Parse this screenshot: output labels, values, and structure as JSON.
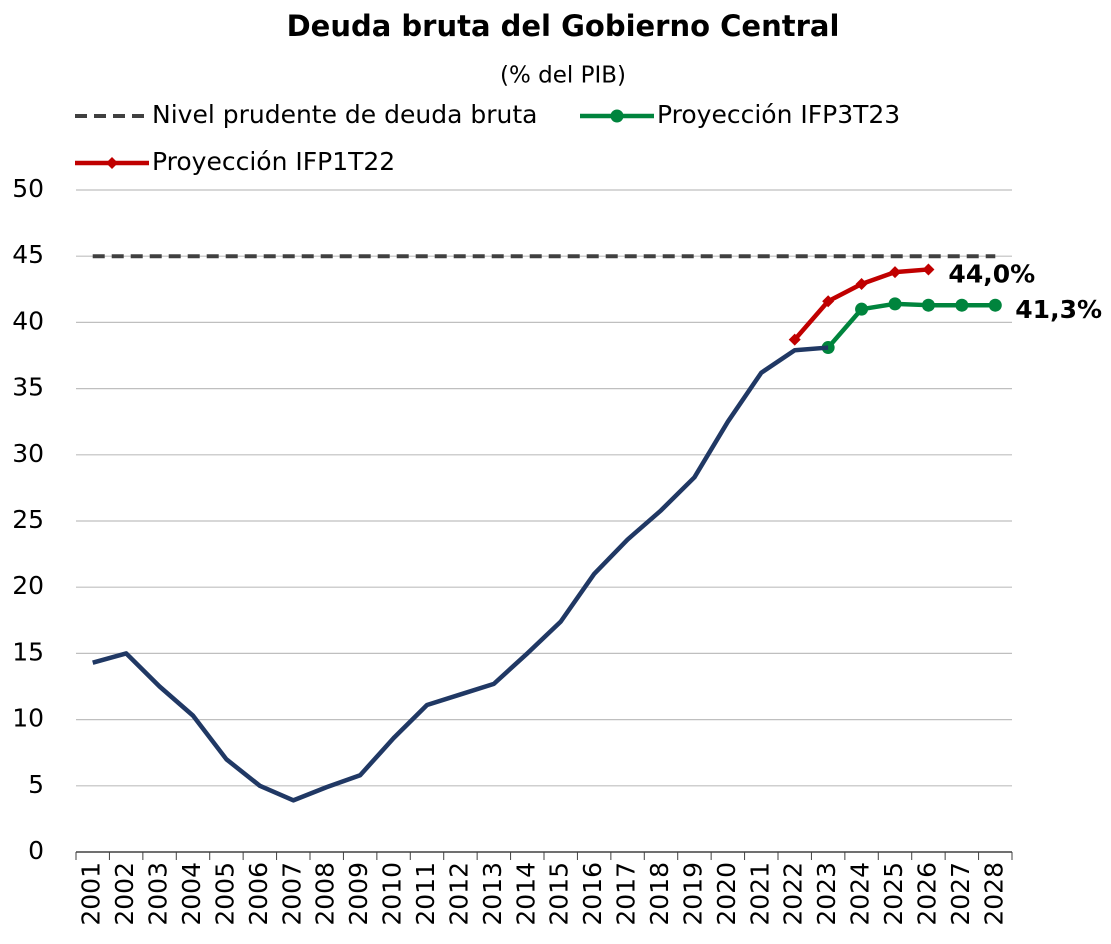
{
  "chart_data": {
    "type": "line",
    "title": "Deuda bruta del Gobierno Central",
    "subtitle": "(% del PIB)",
    "categories": [
      "2001",
      "2002",
      "2003",
      "2004",
      "2005",
      "2006",
      "2007",
      "2008",
      "2009",
      "2010",
      "2011",
      "2012",
      "2013",
      "2014",
      "2015",
      "2016",
      "2017",
      "2018",
      "2019",
      "2020",
      "2021",
      "2022",
      "2023",
      "2024",
      "2025",
      "2026",
      "2027",
      "2028"
    ],
    "series": [
      {
        "name": "Nivel prudente de deuda bruta",
        "color": "#404040",
        "dash": true,
        "marker": "none",
        "values": [
          45,
          45,
          45,
          45,
          45,
          45,
          45,
          45,
          45,
          45,
          45,
          45,
          45,
          45,
          45,
          45,
          45,
          45,
          45,
          45,
          45,
          45,
          45,
          45,
          45,
          45,
          45,
          45
        ]
      },
      {
        "name": "Proyección IFP3T23",
        "color": "#00843d",
        "dash": false,
        "marker": "circle",
        "values": [
          null,
          null,
          null,
          null,
          null,
          null,
          null,
          null,
          null,
          null,
          null,
          null,
          null,
          null,
          null,
          null,
          null,
          null,
          null,
          null,
          null,
          null,
          38.1,
          41.0,
          41.4,
          41.3,
          41.3,
          41.3
        ],
        "value_labels": [
          null,
          null,
          null,
          null,
          null,
          null,
          null,
          null,
          null,
          null,
          null,
          null,
          null,
          null,
          null,
          null,
          null,
          null,
          null,
          null,
          null,
          null,
          null,
          null,
          null,
          null,
          null,
          "41,3%"
        ]
      },
      {
        "name": "Proyección IFP1T22",
        "color": "#c00000",
        "dash": false,
        "marker": "diamond",
        "values": [
          null,
          null,
          null,
          null,
          null,
          null,
          null,
          null,
          null,
          null,
          null,
          null,
          null,
          null,
          null,
          null,
          null,
          null,
          null,
          null,
          null,
          38.7,
          41.6,
          42.9,
          43.8,
          44.0,
          null,
          null
        ],
        "value_labels": [
          null,
          null,
          null,
          null,
          null,
          null,
          null,
          null,
          null,
          null,
          null,
          null,
          null,
          null,
          null,
          null,
          null,
          null,
          null,
          null,
          null,
          null,
          null,
          null,
          null,
          "44,0%",
          null,
          null
        ]
      },
      {
        "color": "#203864",
        "dash": false,
        "marker": "none",
        "values": [
          14.3,
          15.0,
          12.5,
          10.3,
          7.0,
          5.0,
          3.9,
          4.9,
          5.8,
          8.6,
          11.1,
          11.9,
          12.7,
          15.0,
          17.4,
          21.0,
          23.6,
          25.8,
          28.3,
          32.5,
          36.2,
          37.9,
          38.1,
          null,
          null,
          null,
          null,
          null
        ]
      }
    ],
    "ylim": [
      0,
      50
    ],
    "yticks": [
      0,
      5,
      10,
      15,
      20,
      25,
      30,
      35,
      40,
      45,
      50
    ],
    "grid": true
  }
}
